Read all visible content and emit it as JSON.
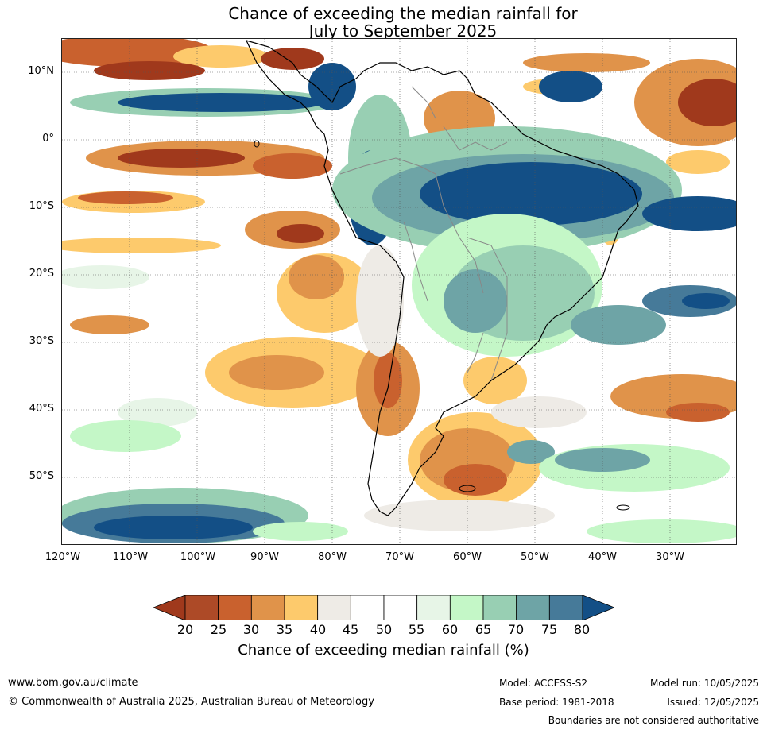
{
  "title": {
    "line1": "Chance of exceeding the median rainfall for",
    "line2": "July to September 2025"
  },
  "map": {
    "lat_labels": [
      "10°N",
      "0°",
      "10°S",
      "20°S",
      "30°S",
      "40°S",
      "50°S"
    ],
    "lon_labels": [
      "120°W",
      "110°W",
      "100°W",
      "90°W",
      "80°W",
      "70°W",
      "60°W",
      "50°W",
      "40°W",
      "30°W"
    ],
    "lat_range": [
      15,
      -60
    ],
    "lon_range": [
      -120,
      -20
    ]
  },
  "colorbar": {
    "ticks": [
      "20",
      "25",
      "30",
      "35",
      "40",
      "45",
      "50",
      "55",
      "60",
      "65",
      "70",
      "75",
      "80"
    ],
    "colors": [
      "#a0391c",
      "#ad4a27",
      "#c9612e",
      "#e0934a",
      "#fdca6c",
      "#eeebe6",
      "#ffffff",
      "#ffffff",
      "#e7f5e7",
      "#c4f7c7",
      "#98cfb3",
      "#6ea4a6",
      "#467a99",
      "#134f86"
    ],
    "label": "Chance of exceeding median rainfall (%)"
  },
  "footer": {
    "website": "www.bom.gov.au/climate",
    "copyright": "© Commonwealth of Australia 2025, Australian Bureau of Meteorology",
    "model": "Model: ACCESS-S2",
    "base_period": "Base period: 1981-2018",
    "model_run": "Model run: 10/05/2025",
    "issued": "Issued: 12/05/2025",
    "disclaimer": "Boundaries are not considered authoritative"
  }
}
